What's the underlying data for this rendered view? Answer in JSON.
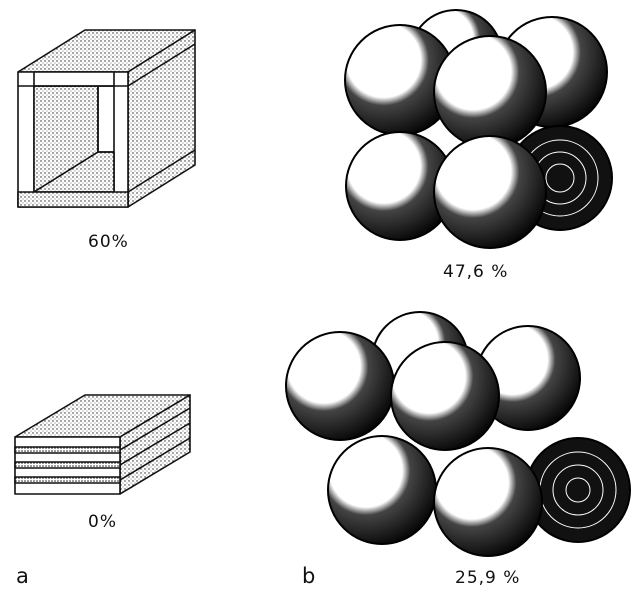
{
  "panels": [
    {
      "letter": "a"
    },
    {
      "letter": "b"
    }
  ],
  "labels": {
    "open_box_percent": "60%",
    "stacked_plates_percent": "0%",
    "cubic_spheres_percent": "47,6 %",
    "close_packed_spheres_percent": "25,9 %"
  },
  "colors": {
    "ink": "#111111",
    "paper": "#ffffff"
  }
}
